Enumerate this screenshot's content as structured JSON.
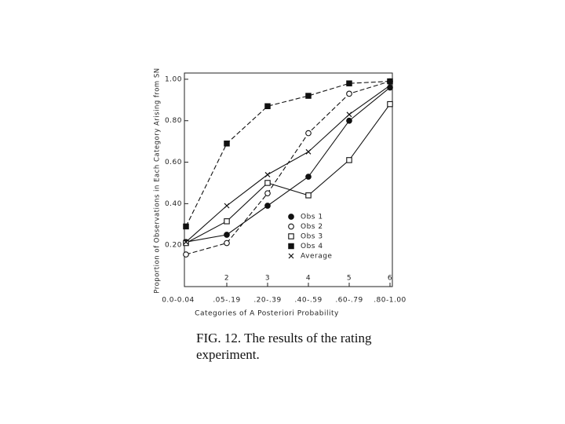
{
  "chart_data": {
    "type": "line",
    "ylabel": "Proportion of Observations in Each Category Arising from SN",
    "xlabel": "Categories of A Posteriori Probability",
    "caption": "FIG. 12.  The results of the rating experiment.",
    "categories": [
      "0.0-0.04",
      ".05-.19",
      ".20-.39",
      ".40-.59",
      ".60-.79",
      ".80-1.00"
    ],
    "category_numbers": [
      null,
      2,
      3,
      4,
      5,
      6
    ],
    "ylim": [
      0,
      1.03
    ],
    "yticks": [
      {
        "value": 0.2,
        "label": "0.20"
      },
      {
        "value": 0.4,
        "label": "0.40"
      },
      {
        "value": 0.6,
        "label": "0.60"
      },
      {
        "value": 0.8,
        "label": "0.80"
      },
      {
        "value": 1.0,
        "label": "1.00"
      }
    ],
    "series": [
      {
        "name": "Obs 1",
        "color": "#111111",
        "marker": "filled-circle",
        "dashed": false,
        "values": [
          0.215,
          0.25,
          0.39,
          0.53,
          0.8,
          0.96
        ]
      },
      {
        "name": "Obs 2",
        "color": "#111111",
        "marker": "open-circle",
        "dashed": true,
        "values": [
          0.155,
          0.21,
          0.45,
          0.74,
          0.93,
          0.99
        ]
      },
      {
        "name": "Obs 3",
        "color": "#111111",
        "marker": "open-square",
        "dashed": false,
        "values": [
          0.21,
          0.315,
          0.5,
          0.44,
          0.61,
          0.88
        ]
      },
      {
        "name": "Obs 4",
        "color": "#111111",
        "marker": "filled-square",
        "dashed": true,
        "values": [
          0.29,
          0.69,
          0.87,
          0.92,
          0.98,
          0.99
        ]
      },
      {
        "name": "Average",
        "color": "#111111",
        "marker": "x",
        "dashed": false,
        "values": [
          0.215,
          0.39,
          0.54,
          0.65,
          0.83,
          0.97
        ]
      }
    ]
  }
}
